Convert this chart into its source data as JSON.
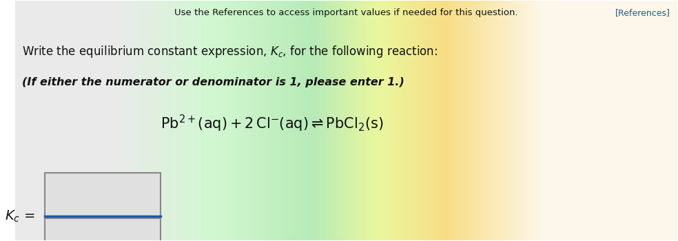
{
  "top_right_text": "[References]",
  "top_center_text": "Use the References to access important values if needed for this question.",
  "line1": "Write the equilibrium constant expression, $K_c$, for the following reaction:",
  "line2_italic": "(If either the numerator or denominator is 1, please enter 1.)",
  "reaction": "$\\mathrm{Pb^{2+}(aq) + 2\\, Cl^{-}(aq) \\rightleftharpoons PbCl_2(s)}$",
  "kc_label": "$K_c$",
  "equals": "=",
  "bg_left_color": "#e8e8e8",
  "bg_mid_color": "#c8e8c0",
  "bg_right_color": "#f0f0e0",
  "box_color": "#d0d0d0",
  "line_color": "#2255aa",
  "text_color": "#111111",
  "ref_color": "#1a5599",
  "fig_width": 9.84,
  "fig_height": 3.5,
  "dpi": 100
}
